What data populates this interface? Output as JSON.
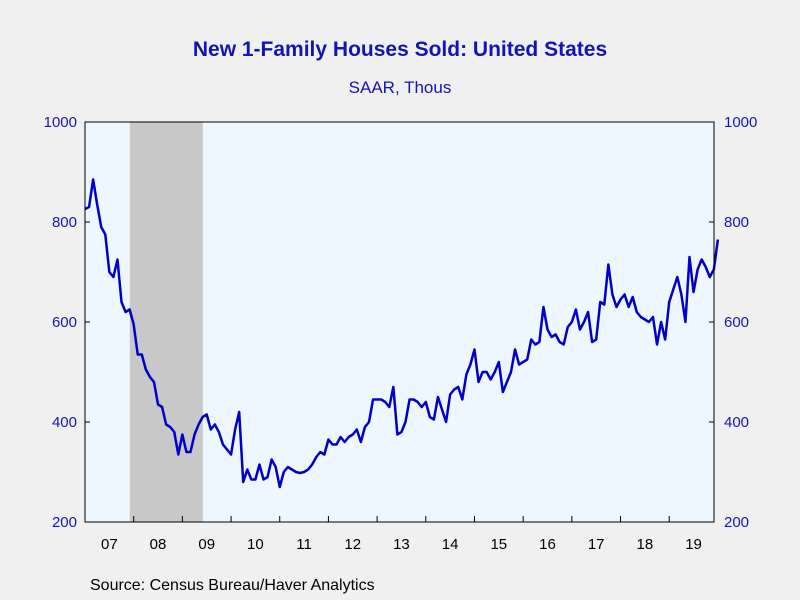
{
  "chart_data": {
    "type": "line",
    "title": "New 1-Family Houses Sold: United States",
    "subtitle": "SAAR, Thous",
    "source": "Source:  Census Bureau/Haver Analytics",
    "ylim": [
      200,
      1000
    ],
    "yticks": [
      200,
      400,
      600,
      800,
      1000
    ],
    "xlim": [
      2007.0,
      2019.92
    ],
    "xtick_labels": [
      "07",
      "08",
      "09",
      "10",
      "11",
      "12",
      "13",
      "14",
      "15",
      "16",
      "17",
      "18",
      "19"
    ],
    "recession": {
      "start": 2007.92,
      "end": 2009.42
    },
    "grid": false,
    "line_color": "#0000c8",
    "recession_color": "#c8c8c8",
    "plot_bg": "#eef6ff",
    "series": [
      {
        "start_year": 2007.0,
        "step": 0.0833333,
        "values": [
          826,
          830,
          885,
          835,
          790,
          775,
          700,
          690,
          725,
          640,
          620,
          625,
          595,
          535,
          535,
          505,
          490,
          480,
          435,
          430,
          395,
          390,
          380,
          335,
          375,
          340,
          340,
          375,
          395,
          410,
          415,
          385,
          395,
          380,
          355,
          345,
          335,
          385,
          420,
          280,
          305,
          285,
          285,
          315,
          285,
          290,
          325,
          310,
          270,
          300,
          310,
          305,
          300,
          298,
          300,
          305,
          315,
          330,
          340,
          335,
          365,
          355,
          355,
          370,
          360,
          370,
          375,
          385,
          360,
          390,
          400,
          445,
          445,
          445,
          440,
          430,
          470,
          375,
          380,
          400,
          445,
          445,
          440,
          430,
          440,
          410,
          405,
          450,
          425,
          400,
          455,
          465,
          470,
          445,
          495,
          515,
          545,
          480,
          500,
          500,
          485,
          500,
          520,
          460,
          480,
          500,
          545,
          515,
          520,
          525,
          565,
          555,
          560,
          630,
          585,
          570,
          575,
          560,
          555,
          590,
          600,
          625,
          585,
          600,
          620,
          560,
          565,
          640,
          635,
          715,
          655,
          630,
          645,
          655,
          630,
          650,
          620,
          610,
          605,
          600,
          610,
          555,
          600,
          565,
          640,
          665,
          690,
          655,
          600,
          730,
          660,
          705,
          725,
          710,
          690,
          705,
          765
        ]
      }
    ]
  }
}
